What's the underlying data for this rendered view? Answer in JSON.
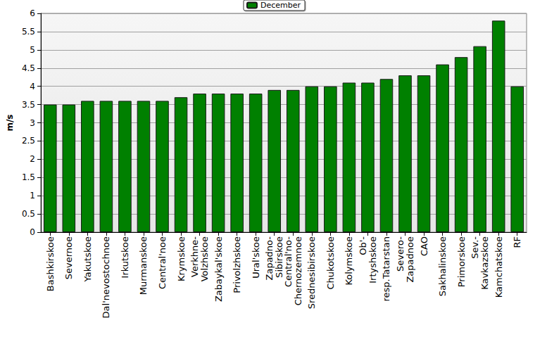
{
  "chart_data": {
    "type": "bar",
    "y_label": "m/s",
    "categories": [
      "Bashkirskoe",
      "Severnoe",
      "Yakutskoe",
      "Dal'nevostochnoe",
      "Irkutskoe",
      "Murmanskoe",
      "Central'noe",
      "Krymskoe",
      "Verkhne-\nVolzhskoe",
      "Zabaykal'skoe",
      "Privolzhskoe",
      "Ural'skoe",
      "Zapadno-\nSibirskoe",
      "Central'no-\nChernozemnoe",
      "Srednesibirskoe",
      "Chukotskoe",
      "Kolymskoe",
      "Ob'-\nIrtyshskoe",
      "resp.Tatarstan",
      "Severo-\nZapadnoe",
      "CAO",
      "Sakhalinskoe",
      "Primorskoe",
      "Sev.-\nKavkazskoe",
      "Kamchatskoe",
      "RF"
    ],
    "series": [
      {
        "name": "December",
        "color": "#008000",
        "values": [
          3.5,
          3.5,
          3.6,
          3.6,
          3.6,
          3.6,
          3.6,
          3.7,
          3.8,
          3.8,
          3.8,
          3.8,
          3.9,
          3.9,
          4.0,
          4.0,
          4.1,
          4.1,
          4.2,
          4.3,
          4.3,
          4.6,
          4.8,
          5.1,
          5.8,
          4.0
        ]
      }
    ],
    "ylim": [
      0,
      6
    ],
    "yticks": [
      0,
      0.5,
      1,
      1.5,
      2,
      2.5,
      3,
      3.5,
      4,
      4.5,
      5,
      5.5,
      6
    ],
    "grid": true,
    "legend": "top"
  }
}
